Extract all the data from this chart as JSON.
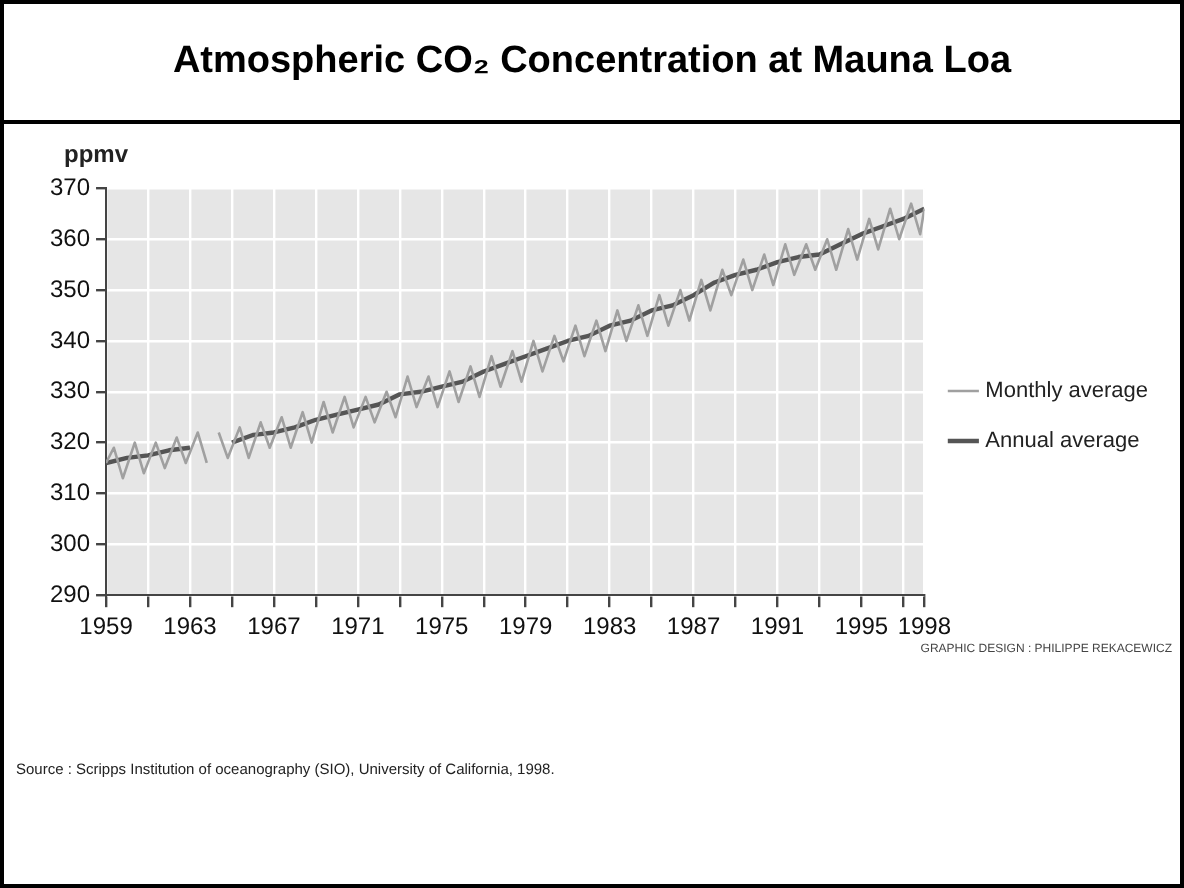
{
  "chart_data": {
    "type": "line",
    "title": "Atmospheric CO₂ Concentration at Mauna Loa",
    "ylabel": "ppmv",
    "annotations": [
      "GRAPHIC DESIGN : PHILIPPE REKACEWICZ",
      "Source : Scripps Institution of oceanography (SIO), University of California, 1998."
    ],
    "xlim": [
      1959,
      1998
    ],
    "xticks": [
      1959,
      {
        "value": 1961,
        "label": null
      },
      1963,
      {
        "value": 1965,
        "label": null
      },
      1967,
      {
        "value": 1969,
        "label": null
      },
      1971,
      {
        "value": 1973,
        "label": null
      },
      1975,
      {
        "value": 1977,
        "label": null
      },
      1979,
      {
        "value": 1981,
        "label": null
      },
      1983,
      {
        "value": 1985,
        "label": null
      },
      1987,
      {
        "value": 1989,
        "label": null
      },
      1991,
      {
        "value": 1993,
        "label": null
      },
      1995,
      {
        "value": 1997,
        "label": null
      },
      1998
    ],
    "ylim": [
      290,
      370
    ],
    "yticks": [
      290,
      300,
      310,
      320,
      330,
      340,
      350,
      360,
      370
    ],
    "grid": true,
    "legend": "right",
    "marker": "none",
    "line_style": "solid",
    "series": [
      {
        "name": "Monthly average",
        "color": "#a0a0a0",
        "x": [
          1959,
          1959.37,
          1959.8,
          1960.37,
          1960.8,
          1961.37,
          1961.8,
          1962.37,
          1962.8,
          1963.37,
          1963.8,
          1964.1,
          1964.37,
          1964.8,
          1965.37,
          1965.8,
          1966.37,
          1966.8,
          1967.37,
          1967.8,
          1968.37,
          1968.8,
          1969.37,
          1969.8,
          1970.37,
          1970.8,
          1971.37,
          1971.8,
          1972.37,
          1972.8,
          1973.37,
          1973.8,
          1974.37,
          1974.8,
          1975.37,
          1975.8,
          1976.37,
          1976.8,
          1977.37,
          1977.8,
          1978.37,
          1978.8,
          1979.37,
          1979.8,
          1980.37,
          1980.8,
          1981.37,
          1981.8,
          1982.37,
          1982.8,
          1983.37,
          1983.8,
          1984.37,
          1984.8,
          1985.37,
          1985.8,
          1986.37,
          1986.8,
          1987.37,
          1987.8,
          1988.37,
          1988.8,
          1989.37,
          1989.8,
          1990.37,
          1990.8,
          1991.37,
          1991.8,
          1992.37,
          1992.8,
          1993.37,
          1993.8,
          1994.37,
          1994.8,
          1995.37,
          1995.8,
          1996.37,
          1996.8,
          1997.37,
          1997.8,
          1998
        ],
        "values": [
          316,
          319,
          313,
          320,
          314,
          320,
          315,
          321,
          316,
          322,
          316,
          null,
          322,
          317,
          323,
          317,
          324,
          319,
          325,
          319,
          326,
          320,
          328,
          322,
          329,
          323,
          329,
          324,
          330,
          325,
          333,
          327,
          333,
          327,
          334,
          328,
          335,
          329,
          337,
          331,
          338,
          332,
          340,
          334,
          341,
          336,
          343,
          337,
          344,
          338,
          346,
          340,
          347,
          341,
          349,
          343,
          350,
          344,
          352,
          346,
          354,
          349,
          356,
          350,
          357,
          351,
          359,
          353,
          359,
          354,
          360,
          354,
          362,
          356,
          364,
          358,
          366,
          360,
          367,
          361,
          366
        ]
      },
      {
        "name": "Annual average",
        "color": "#555555",
        "x": [
          1959,
          1960,
          1961,
          1962,
          1963,
          1964,
          1965,
          1966,
          1967,
          1968,
          1969,
          1970,
          1971,
          1972,
          1973,
          1974,
          1975,
          1976,
          1977,
          1978,
          1979,
          1980,
          1981,
          1982,
          1983,
          1984,
          1985,
          1986,
          1987,
          1988,
          1989,
          1990,
          1991,
          1992,
          1993,
          1994,
          1995,
          1996,
          1997,
          1998
        ],
        "values": [
          316,
          317,
          317.5,
          318.5,
          319,
          null,
          320,
          321.5,
          322,
          323,
          324.5,
          325.5,
          326.5,
          327.5,
          329.5,
          330,
          331,
          332,
          334,
          335.5,
          337,
          338.5,
          340,
          341,
          343,
          344,
          346,
          347,
          349,
          351.5,
          353,
          354,
          355.5,
          356.5,
          357,
          359,
          361,
          362.5,
          364,
          366
        ]
      }
    ]
  }
}
